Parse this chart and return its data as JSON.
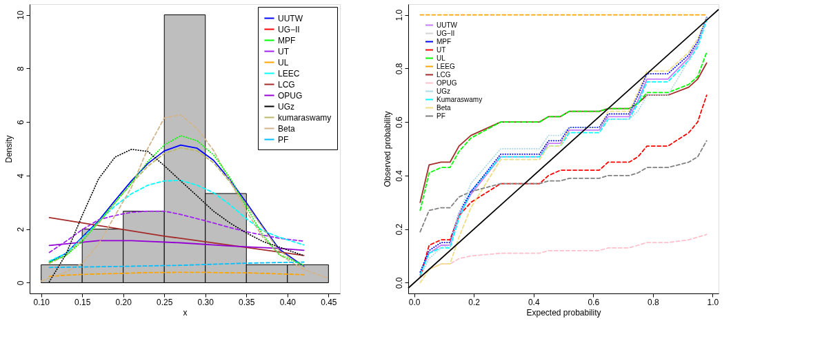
{
  "chart_data": [
    {
      "type": "histogram",
      "xlabel": "x",
      "ylabel": "Density",
      "xlim": [
        0.086,
        0.464
      ],
      "ylim": [
        -0.4,
        10.4
      ],
      "xticks": [
        {
          "value": 0.1,
          "label": "0.10"
        },
        0.15,
        {
          "value": 0.2,
          "label": "0.20"
        },
        0.25,
        {
          "value": 0.3,
          "label": "0.30"
        },
        0.35,
        {
          "value": 0.4,
          "label": "0.40"
        },
        0.45
      ],
      "yticks": [
        0,
        2,
        4,
        6,
        8,
        10
      ],
      "legend": "top right",
      "bins": [
        0.1,
        0.15,
        0.2,
        0.25,
        0.3,
        0.35,
        0.4,
        0.45
      ],
      "values": [
        0.67,
        2.0,
        2.67,
        10.0,
        3.33,
        0.67,
        0.67
      ],
      "color": "#bebebe",
      "x": [
        0.11,
        0.13,
        0.15,
        0.17,
        0.19,
        0.21,
        0.23,
        0.25,
        0.27,
        0.29,
        0.31,
        0.33,
        0.35,
        0.37,
        0.39,
        0.42
      ],
      "series": [
        {
          "name": "UUTW",
          "type": "line",
          "color": "#0000ff",
          "line_style": "solid",
          "values": [
            0.77,
            1.09,
            1.7,
            2.31,
            3.07,
            3.8,
            4.45,
            4.92,
            5.14,
            5.02,
            4.57,
            3.84,
            2.99,
            2.1,
            1.25,
            0.61
          ]
        },
        {
          "name": "UG−II",
          "type": "line",
          "color": "#ff0000",
          "line_style": "dashed",
          "values": [
            null,
            null,
            null,
            null,
            null,
            null,
            null,
            null,
            null,
            null,
            null,
            null,
            null,
            null,
            null,
            null
          ]
        },
        {
          "name": "MPF",
          "type": "line",
          "color": "#00ff00",
          "line_style": "dotted",
          "values": [
            0.77,
            1.01,
            1.54,
            2.27,
            3.0,
            3.72,
            4.53,
            5.14,
            5.49,
            5.3,
            4.77,
            3.92,
            2.83,
            1.78,
            1.05,
            0.65
          ]
        },
        {
          "name": "UT",
          "type": "line",
          "color": "#a020f0",
          "line_style": "dashed",
          "values": [
            1.13,
            1.54,
            1.98,
            2.35,
            2.51,
            2.63,
            2.67,
            2.67,
            2.55,
            2.39,
            2.23,
            2.06,
            1.9,
            1.78,
            1.66,
            1.55
          ]
        },
        {
          "name": "UL",
          "type": "line",
          "color": "#ffa500",
          "line_style": "dashed",
          "values": [
            0.24,
            0.28,
            0.31,
            0.33,
            0.34,
            0.36,
            0.38,
            0.38,
            0.39,
            0.39,
            0.38,
            0.37,
            0.37,
            0.35,
            0.33,
            0.3
          ]
        },
        {
          "name": "LEEC",
          "type": "line",
          "color": "#00ffff",
          "line_style": "dashed",
          "values": [
            0.81,
            1.09,
            1.66,
            2.27,
            2.87,
            3.32,
            3.64,
            3.8,
            3.82,
            3.64,
            3.36,
            2.91,
            2.39,
            1.94,
            1.7,
            1.41
          ]
        },
        {
          "name": "LCG",
          "type": "line",
          "color": "#a52a2a",
          "line_style": "solid",
          "x": [
            0.11,
            0.25,
            0.42
          ],
          "values": [
            2.43,
            1.74,
            1.02
          ]
        },
        {
          "name": "OPUG",
          "type": "line",
          "color": "#9400d3",
          "line_style": "solid",
          "x": [
            0.11,
            0.17,
            0.21,
            0.27,
            0.33,
            0.39,
            0.42
          ],
          "values": [
            1.39,
            1.57,
            1.57,
            1.49,
            1.37,
            1.28,
            1.21
          ]
        },
        {
          "name": "UGz",
          "type": "line",
          "color": "#000000",
          "line_style": "dotted",
          "values": [
            0.04,
            1.05,
            2.51,
            3.88,
            4.69,
            4.98,
            4.9,
            4.37,
            3.8,
            3.24,
            2.67,
            2.23,
            1.86,
            1.54,
            1.33,
            1.01
          ]
        },
        {
          "name": "kumaraswamy",
          "type": "line",
          "color": "#bdb76b",
          "line_style": "dashed",
          "values": [
            0.72,
            1.02,
            1.62,
            2.22,
            2.98,
            3.7,
            4.35,
            4.82,
            5.04,
            4.92,
            4.48,
            3.76,
            2.92,
            2.05,
            1.2,
            0.58
          ]
        },
        {
          "name": "Beta",
          "type": "line",
          "color": "#d2b48c",
          "line_style": "dashed",
          "x": [
            0.1,
            0.13,
            0.15,
            0.17,
            0.19,
            0.21,
            0.23,
            0.25,
            0.27,
            0.29,
            0.31,
            0.33,
            0.35,
            0.37,
            0.39,
            0.42,
            0.45
          ],
          "values": [
            0.06,
            0.4,
            0.72,
            1.45,
            2.51,
            3.56,
            5.02,
            6.15,
            6.27,
            5.75,
            4.94,
            3.8,
            2.67,
            1.7,
            1.05,
            0.49,
            0.16
          ]
        },
        {
          "name": "PF",
          "type": "line",
          "color": "#00bfff",
          "line_style": "dashed",
          "x": [
            0.11,
            0.2,
            0.27,
            0.35,
            0.42
          ],
          "values": [
            0.57,
            0.61,
            0.65,
            0.73,
            0.77
          ]
        }
      ]
    },
    {
      "type": "line",
      "xlabel": "Expected probability",
      "ylabel": "Observed probability",
      "xlim": [
        -0.02,
        1.02
      ],
      "ylim": [
        -0.04,
        1.04
      ],
      "xticks": [
        {
          "value": 0,
          "label": "0.0"
        },
        0.2,
        0.4,
        0.6,
        0.8,
        {
          "value": 1,
          "label": "1.0"
        }
      ],
      "yticks": [
        {
          "value": 0,
          "label": "0.0"
        },
        0.2,
        0.4,
        0.6,
        0.8,
        {
          "value": 1,
          "label": "1.0"
        }
      ],
      "legend": "top left",
      "x": [
        0.02,
        0.05,
        0.09,
        0.12,
        0.15,
        0.19,
        0.29,
        0.42,
        0.45,
        0.49,
        0.52,
        0.62,
        0.65,
        0.72,
        0.75,
        0.78,
        0.85,
        0.92,
        0.95,
        0.98
      ],
      "series": [
        {
          "name": "UUTW",
          "type": "line",
          "color": "#c77cff",
          "line_style": "solid",
          "values": [
            0.03,
            0.11,
            0.14,
            0.14,
            0.25,
            0.33,
            0.47,
            0.47,
            0.52,
            0.52,
            0.57,
            0.57,
            0.62,
            0.62,
            0.68,
            0.76,
            0.76,
            0.84,
            0.89,
            0.99
          ]
        },
        {
          "name": "UG−II",
          "type": "line",
          "color": "#d3d3d3",
          "line_style": "dashed",
          "values": [
            null,
            null,
            null,
            null,
            null,
            null,
            null,
            null,
            null,
            null,
            null,
            null,
            null,
            null,
            null,
            null,
            null,
            null,
            null,
            null
          ]
        },
        {
          "name": "MPF",
          "type": "line",
          "color": "#0000ff",
          "line_style": "dotted",
          "values": [
            0.04,
            0.12,
            0.15,
            0.15,
            0.26,
            0.34,
            0.48,
            0.48,
            0.53,
            0.53,
            0.58,
            0.58,
            0.63,
            0.63,
            0.7,
            0.78,
            0.78,
            0.85,
            0.9,
            0.99
          ]
        },
        {
          "name": "UT",
          "type": "line",
          "color": "#ff0000",
          "line_style": "dashed",
          "values": [
            0.02,
            0.14,
            0.16,
            0.16,
            0.25,
            0.3,
            0.37,
            0.37,
            0.4,
            0.42,
            0.42,
            0.42,
            0.45,
            0.45,
            0.47,
            0.51,
            0.51,
            0.56,
            0.6,
            0.7
          ]
        },
        {
          "name": "UL",
          "type": "line",
          "color": "#00ff00",
          "line_style": "dashed",
          "values": [
            0.27,
            0.41,
            0.43,
            0.43,
            0.49,
            0.54,
            0.6,
            0.6,
            0.62,
            0.62,
            0.64,
            0.64,
            0.65,
            0.65,
            0.67,
            0.71,
            0.71,
            0.74,
            0.77,
            0.86
          ]
        },
        {
          "name": "LEEG",
          "type": "line",
          "color": "#ffa500",
          "line_style": "dashed",
          "values": [
            1,
            1,
            1,
            1,
            1,
            1,
            1,
            1,
            1,
            1,
            1,
            1,
            1,
            1,
            1,
            1,
            1,
            1,
            1,
            1
          ]
        },
        {
          "name": "LCG",
          "type": "line",
          "color": "#a52a2a",
          "line_style": "solid",
          "values": [
            0.3,
            0.44,
            0.45,
            0.45,
            0.51,
            0.55,
            0.6,
            0.6,
            0.62,
            0.62,
            0.64,
            0.64,
            0.65,
            0.65,
            0.67,
            0.7,
            0.7,
            0.73,
            0.76,
            0.82
          ]
        },
        {
          "name": "OPUG",
          "type": "line",
          "color": "#ffc0cb",
          "line_style": "dashed",
          "values": [
            0.02,
            0.05,
            0.07,
            0.07,
            0.09,
            0.1,
            0.11,
            0.11,
            0.12,
            0.12,
            0.12,
            0.12,
            0.13,
            0.13,
            0.14,
            0.15,
            0.15,
            0.16,
            0.17,
            0.18
          ]
        },
        {
          "name": "UGz",
          "type": "line",
          "color": "#add8e6",
          "line_style": "dotted",
          "values": [
            0.02,
            0.09,
            0.13,
            0.14,
            0.26,
            0.37,
            0.5,
            0.5,
            0.55,
            0.55,
            0.58,
            0.58,
            0.61,
            0.61,
            0.64,
            0.7,
            0.7,
            0.83,
            0.89,
            0.99
          ]
        },
        {
          "name": "Kumaraswamy",
          "type": "line",
          "color": "#00ffff",
          "line_style": "dashed",
          "values": [
            0.03,
            0.11,
            0.13,
            0.13,
            0.24,
            0.34,
            0.47,
            0.47,
            0.51,
            0.51,
            0.56,
            0.56,
            0.61,
            0.61,
            0.67,
            0.75,
            0.75,
            0.83,
            0.88,
            0.98
          ]
        },
        {
          "name": "Beta",
          "type": "line",
          "color": "#eedd82",
          "line_style": "dashed",
          "values": [
            0.0,
            0.05,
            0.07,
            0.07,
            0.17,
            0.28,
            0.46,
            0.46,
            0.51,
            0.51,
            0.58,
            0.58,
            0.64,
            0.64,
            0.71,
            0.79,
            0.79,
            0.86,
            0.91,
            0.99
          ]
        },
        {
          "name": "PF",
          "type": "line",
          "color": "#808080",
          "line_style": "dashed",
          "values": [
            0.19,
            0.27,
            0.28,
            0.28,
            0.32,
            0.34,
            0.37,
            0.37,
            0.38,
            0.38,
            0.39,
            0.39,
            0.4,
            0.4,
            0.41,
            0.43,
            0.43,
            0.45,
            0.47,
            0.53
          ]
        },
        {
          "type": "line",
          "color": "#000000",
          "line_style": "solid",
          "x": [
            -0.02,
            1.02
          ],
          "values": [
            -0.02,
            1.02
          ]
        }
      ]
    }
  ]
}
